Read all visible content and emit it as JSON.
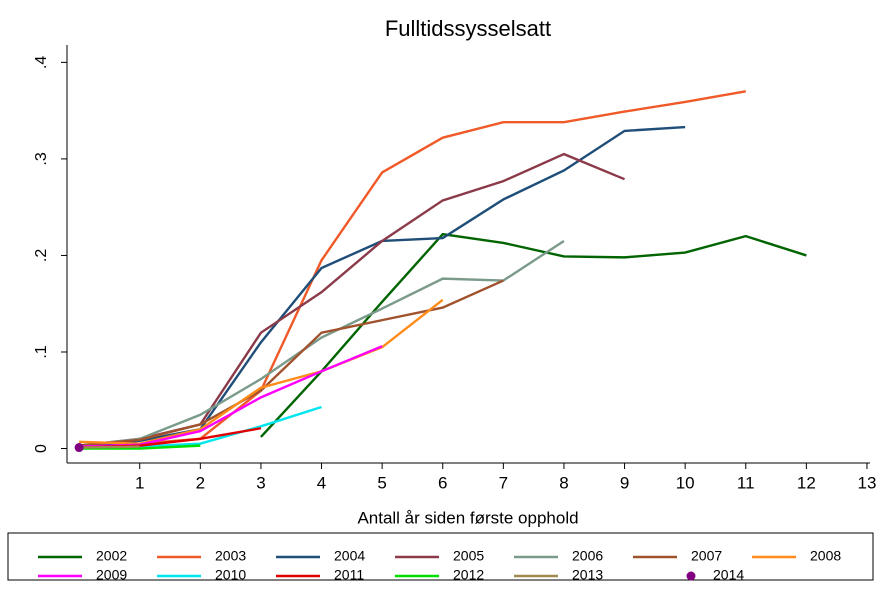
{
  "chart_data": {
    "type": "line",
    "title": "Fulltidssysselsatt",
    "x_label": "Antall år siden første opphold",
    "x": [
      0,
      1,
      2,
      3,
      4,
      5,
      6,
      7,
      8,
      9,
      10,
      11,
      12
    ],
    "xlim": [
      -0.2,
      13.05
    ],
    "xticks": [
      1,
      2,
      3,
      4,
      5,
      6,
      7,
      8,
      9,
      10,
      11,
      12,
      13
    ],
    "ylim": [
      -0.015,
      0.418
    ],
    "yticks": [
      0,
      {
        "value": 0.1,
        "label": ".1"
      },
      {
        "value": 0.2,
        "label": ".2"
      },
      {
        "value": 0.3,
        "label": ".3"
      },
      {
        "value": 0.4,
        "label": ".4"
      }
    ],
    "legend": "bottom",
    "series": [
      {
        "name": "2002",
        "color": "#006400",
        "values": [
          null,
          null,
          null,
          0.012,
          0.08,
          0.152,
          0.222,
          0.213,
          0.199,
          0.198,
          0.203,
          0.22,
          0.2
        ]
      },
      {
        "name": "2003",
        "color": "#f05a28",
        "values": [
          0.003,
          0.005,
          0.01,
          0.06,
          0.195,
          0.286,
          0.322,
          0.338,
          0.338,
          0.349,
          0.359,
          0.37,
          null
        ]
      },
      {
        "name": "2004",
        "color": "#1f4e79",
        "values": [
          0.002,
          0.008,
          0.02,
          0.11,
          0.187,
          0.215,
          0.218,
          0.258,
          0.288,
          0.329,
          0.333,
          null,
          null
        ]
      },
      {
        "name": "2005",
        "color": "#8b3a4a",
        "values": [
          0.003,
          0.01,
          0.025,
          0.12,
          0.162,
          0.215,
          0.257,
          0.277,
          0.305,
          0.279,
          null,
          null,
          null
        ]
      },
      {
        "name": "2006",
        "color": "#7a9a8a",
        "values": [
          0.003,
          0.01,
          0.035,
          0.072,
          0.115,
          0.145,
          0.176,
          0.174,
          0.215,
          null,
          null,
          null,
          null
        ]
      },
      {
        "name": "2007",
        "color": "#a0522d",
        "values": [
          0.003,
          0.009,
          0.025,
          0.06,
          0.12,
          0.133,
          0.146,
          0.174,
          null,
          null,
          null,
          null,
          null
        ]
      },
      {
        "name": "2008",
        "color": "#ff8c1a",
        "values": [
          0.007,
          0.005,
          0.02,
          0.063,
          0.08,
          0.105,
          0.154,
          null,
          null,
          null,
          null,
          null,
          null
        ]
      },
      {
        "name": "2009",
        "color": "#ff00ff",
        "values": [
          0.002,
          0.004,
          0.018,
          0.053,
          0.08,
          0.106,
          null,
          null,
          null,
          null,
          null,
          null,
          null
        ]
      },
      {
        "name": "2010",
        "color": "#00e5ee",
        "values": [
          0,
          0.002,
          0.005,
          0.023,
          0.043,
          null,
          null,
          null,
          null,
          null,
          null,
          null,
          null
        ]
      },
      {
        "name": "2011",
        "color": "#e00000",
        "values": [
          0.001,
          0.003,
          0.01,
          0.021,
          null,
          null,
          null,
          null,
          null,
          null,
          null,
          null,
          null
        ]
      },
      {
        "name": "2012",
        "color": "#00e000",
        "values": [
          0,
          0,
          0.003,
          null,
          null,
          null,
          null,
          null,
          null,
          null,
          null,
          null,
          null
        ]
      },
      {
        "name": "2013",
        "color": "#a08a50",
        "values": [
          0.001,
          0.002,
          null,
          null,
          null,
          null,
          null,
          null,
          null,
          null,
          null,
          null,
          null
        ]
      },
      {
        "name": "2014",
        "color": "#800080",
        "style": "marker",
        "values": [
          0.001,
          null,
          null,
          null,
          null,
          null,
          null,
          null,
          null,
          null,
          null,
          null,
          null
        ]
      }
    ]
  }
}
